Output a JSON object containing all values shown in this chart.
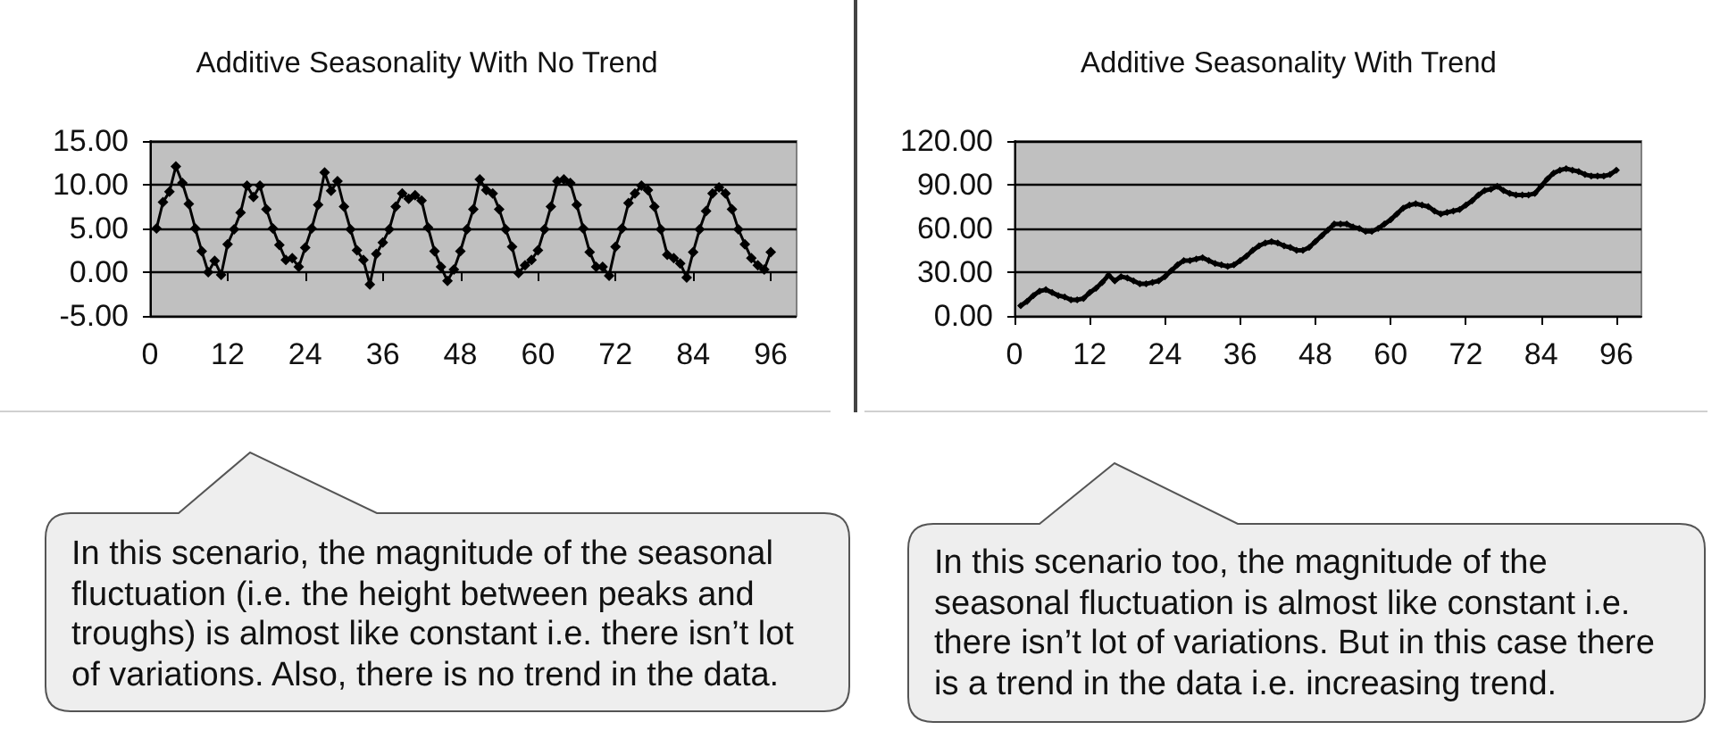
{
  "chart_data": [
    {
      "type": "line",
      "title": "Additive Seasonality With No Trend",
      "color": "#000000",
      "marker": "diamond",
      "line_style": "solid",
      "grid": "y",
      "x": [
        1,
        2,
        3,
        4,
        5,
        6,
        7,
        8,
        9,
        10,
        11,
        12,
        13,
        14,
        15,
        16,
        17,
        18,
        19,
        20,
        21,
        22,
        23,
        24,
        25,
        26,
        27,
        28,
        29,
        30,
        31,
        32,
        33,
        34,
        35,
        36,
        37,
        38,
        39,
        40,
        41,
        42,
        43,
        44,
        45,
        46,
        47,
        48,
        49,
        50,
        51,
        52,
        53,
        54,
        55,
        56,
        57,
        58,
        59,
        60,
        61,
        62,
        63,
        64,
        65,
        66,
        67,
        68,
        69,
        70,
        71,
        72,
        73,
        74,
        75,
        76,
        77,
        78,
        79,
        80,
        81,
        82,
        83,
        84,
        85,
        86,
        87,
        88,
        89,
        90,
        91,
        92,
        93,
        94,
        95,
        96
      ],
      "values": [
        5.0,
        8.0,
        9.2,
        12.1,
        10.2,
        7.8,
        5.0,
        2.4,
        0.0,
        1.3,
        -0.3,
        3.2,
        4.9,
        6.8,
        9.9,
        8.6,
        9.9,
        7.2,
        5.0,
        3.1,
        1.4,
        1.6,
        0.6,
        2.8,
        5.0,
        7.7,
        11.4,
        9.3,
        10.4,
        7.5,
        4.9,
        2.5,
        1.4,
        -1.4,
        2.1,
        3.4,
        4.9,
        7.5,
        9.0,
        8.4,
        8.8,
        8.2,
        5.1,
        2.4,
        0.6,
        -1.0,
        0.3,
        2.4,
        4.9,
        7.2,
        10.6,
        9.4,
        9.0,
        7.2,
        4.9,
        2.9,
        -0.1,
        0.8,
        1.4,
        2.5,
        4.9,
        7.5,
        10.4,
        10.6,
        10.2,
        7.7,
        5.0,
        2.3,
        0.6,
        0.6,
        -0.4,
        2.9,
        5.0,
        7.9,
        9.0,
        9.9,
        9.4,
        7.5,
        4.9,
        2.0,
        1.6,
        1.0,
        -0.6,
        2.3,
        4.9,
        7.0,
        9.0,
        9.7,
        9.0,
        7.2,
        4.9,
        3.2,
        1.6,
        0.8,
        0.3,
        2.3
      ],
      "xlim": [
        0,
        100
      ],
      "xticks": [
        0,
        12,
        24,
        36,
        48,
        60,
        72,
        84,
        96
      ],
      "ylim": [
        -5,
        15
      ],
      "yticks": [
        {
          "value": -5,
          "label": "-5.00"
        },
        {
          "value": 0,
          "label": "0.00"
        },
        {
          "value": 5,
          "label": "5.00"
        },
        {
          "value": 10,
          "label": "10.00"
        },
        {
          "value": 15,
          "label": "15.00"
        }
      ],
      "annotations": [
        "In this scenario, the magnitude of the seasonal fluctuation (i.e. the height between peaks and troughs) is almost like constant i.e. there isn’t lot of variations. Also, there is no trend in the data."
      ]
    },
    {
      "type": "line",
      "title": "Additive Seasonality With Trend",
      "color": "#000000",
      "marker": "diamond",
      "line_style": "solid",
      "grid": "y",
      "x": [
        1,
        2,
        3,
        4,
        5,
        6,
        7,
        8,
        9,
        10,
        11,
        12,
        13,
        14,
        15,
        16,
        17,
        18,
        19,
        20,
        21,
        22,
        23,
        24,
        25,
        26,
        27,
        28,
        29,
        30,
        31,
        32,
        33,
        34,
        35,
        36,
        37,
        38,
        39,
        40,
        41,
        42,
        43,
        44,
        45,
        46,
        47,
        48,
        49,
        50,
        51,
        52,
        53,
        54,
        55,
        56,
        57,
        58,
        59,
        60,
        61,
        62,
        63,
        64,
        65,
        66,
        67,
        68,
        69,
        70,
        71,
        72,
        73,
        74,
        75,
        76,
        77,
        78,
        79,
        80,
        81,
        82,
        83,
        84,
        85,
        86,
        87,
        88,
        89,
        90,
        91,
        92,
        93,
        94,
        95,
        96
      ],
      "values": [
        7,
        10,
        14,
        17,
        18,
        16,
        14,
        13,
        11,
        11,
        12,
        16,
        19,
        23,
        28,
        24,
        27,
        26,
        24,
        22,
        22,
        23,
        24,
        27,
        31,
        35,
        38,
        38,
        39,
        40,
        38,
        36,
        35,
        34,
        35,
        38,
        41,
        45,
        48,
        50,
        51,
        50,
        48,
        47,
        45,
        45,
        47,
        51,
        55,
        59,
        63,
        63,
        63,
        61,
        60,
        58,
        58,
        60,
        63,
        66,
        70,
        74,
        76,
        77,
        76,
        75,
        72,
        70,
        71,
        72,
        73,
        76,
        79,
        83,
        86,
        87,
        89,
        86,
        84,
        83,
        83,
        83,
        84,
        89,
        94,
        98,
        100,
        101,
        100,
        99,
        97,
        96,
        96,
        96,
        97,
        100
      ],
      "xlim": [
        0,
        100
      ],
      "xticks": [
        0,
        12,
        24,
        36,
        48,
        60,
        72,
        84,
        96
      ],
      "ylim": [
        0,
        120
      ],
      "yticks": [
        {
          "value": 0,
          "label": "0.00"
        },
        {
          "value": 30,
          "label": "30.00"
        },
        {
          "value": 60,
          "label": "60.00"
        },
        {
          "value": 90,
          "label": "90.00"
        },
        {
          "value": 120,
          "label": "120.00"
        }
      ],
      "annotations": [
        "In this scenario too, the magnitude of the seasonal fluctuation is almost like constant i.e. there isn’t lot of variations. But in this case there is a trend in the data i.e. increasing trend."
      ]
    }
  ]
}
